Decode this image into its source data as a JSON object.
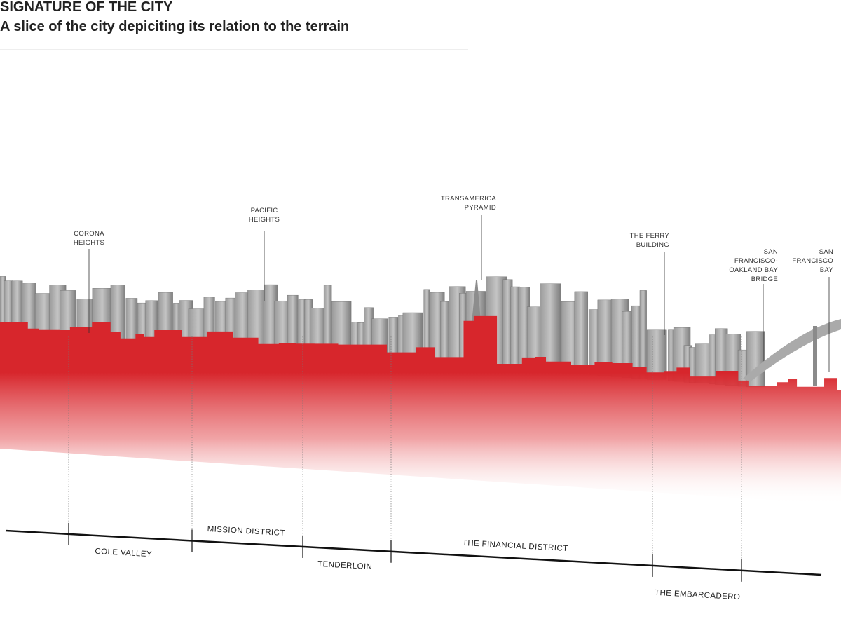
{
  "header": {
    "title": "SIGNATURE OF THE CITY",
    "subtitle": "A slice of the city depiciting its relation to the terrain"
  },
  "landmarks": [
    {
      "lines": [
        "CORONA",
        "HEIGHTS"
      ]
    },
    {
      "lines": [
        "PACIFIC",
        "HEIGHTS"
      ]
    },
    {
      "lines": [
        "TRANSAMERICA",
        "PYRAMID"
      ]
    },
    {
      "lines": [
        "THE FERRY",
        "BUILDING"
      ]
    },
    {
      "lines": [
        "SAN",
        "FRANCISCO-",
        "OAKLAND BAY",
        "BRIDGE"
      ]
    },
    {
      "lines": [
        "SAN",
        "FRANCISCO",
        "BAY"
      ]
    }
  ],
  "districts": [
    "COLE VALLEY",
    "MISSION DISTRICT",
    "TENDERLOIN",
    "THE FINANCIAL DISTRICT",
    "THE EMBARCADERO"
  ]
}
